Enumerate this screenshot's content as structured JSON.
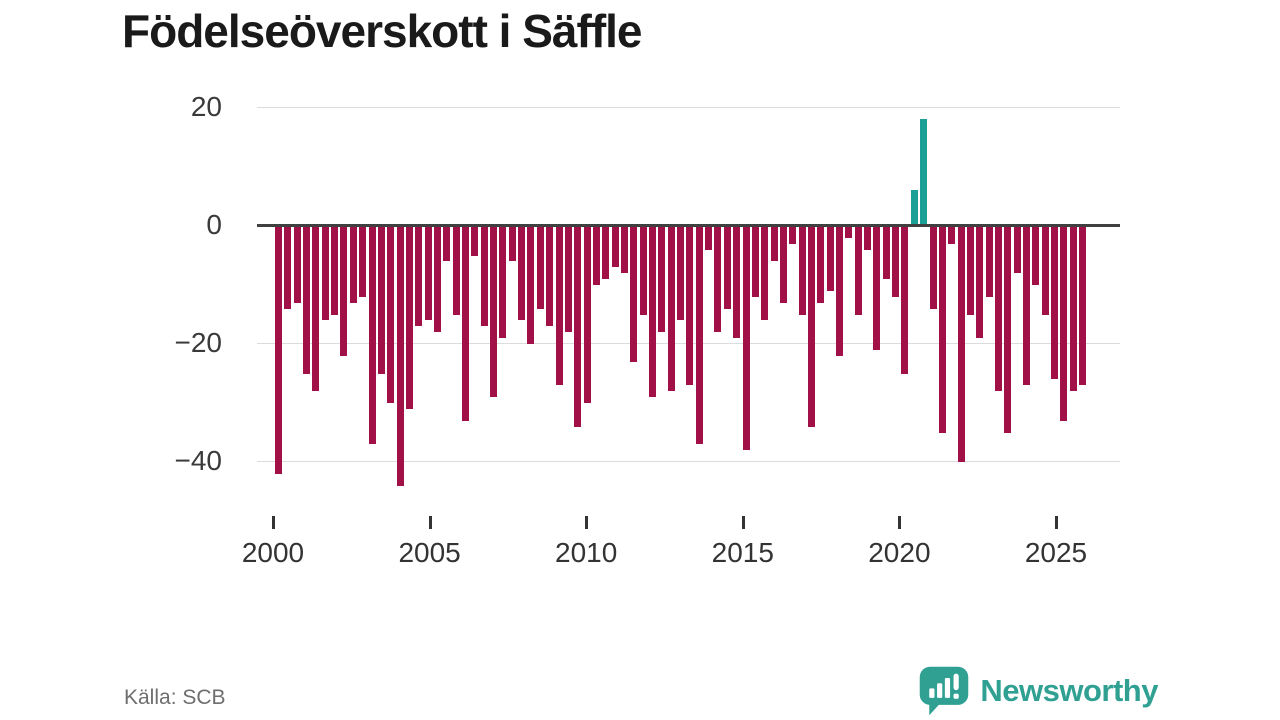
{
  "title": "Födelseöverskott i Säffle",
  "source": "Källa: SCB",
  "logo": {
    "text": "Newsworthy",
    "icon": "newsworthy-speech-bubble-chart-icon"
  },
  "colors": {
    "negative_bar": "#a21048",
    "positive_bar": "#1aa096",
    "zero_axis": "#404040",
    "gridline": "#dcdcdc",
    "axis_label": "#3a3a3a",
    "source_text": "#6e6e6e",
    "logo_teal": "#2fa092",
    "background": "#ffffff"
  },
  "chart_data": {
    "type": "bar",
    "title": "Födelseöverskott i Säffle",
    "xlabel": "",
    "ylabel": "",
    "grid": "horizontal",
    "legend": "none",
    "ylim": [
      -47,
      22
    ],
    "yticks": [
      {
        "value": 20,
        "label": "20"
      },
      {
        "value": 0,
        "label": "0"
      },
      {
        "value": -20,
        "label": "−20"
      },
      {
        "value": -40,
        "label": "−40"
      }
    ],
    "xticks": [
      {
        "year": 2000,
        "label": "2000"
      },
      {
        "year": 2005,
        "label": "2005"
      },
      {
        "year": 2010,
        "label": "2010"
      },
      {
        "year": 2015,
        "label": "2015"
      },
      {
        "year": 2020,
        "label": "2020"
      },
      {
        "year": 2025,
        "label": "2025"
      }
    ],
    "x_start_year": 2000,
    "x_end_year": 2025.8,
    "values": [
      -42,
      -14,
      -13,
      -25,
      -28,
      -16,
      -15,
      -22,
      -13,
      -12,
      -37,
      -25,
      -30,
      -44,
      -31,
      -17,
      -16,
      -18,
      -6,
      -15,
      -33,
      -5,
      -17,
      -29,
      -19,
      -6,
      -16,
      -20,
      -14,
      -17,
      -27,
      -18,
      -34,
      -30,
      -10,
      -9,
      -7,
      -8,
      -23,
      -15,
      -29,
      -18,
      -28,
      -16,
      -27,
      -37,
      -4,
      -18,
      -14,
      -19,
      -38,
      -12,
      -16,
      -6,
      -13,
      -3,
      -15,
      -34,
      -13,
      -11,
      -22,
      -2,
      -15,
      -4,
      -21,
      -9,
      -12,
      -25,
      6,
      18,
      -14,
      -35,
      -3,
      -40,
      -15,
      -19,
      -12,
      -28,
      -35,
      -8,
      -27,
      -10,
      -15,
      -26,
      -33,
      -28,
      -27
    ]
  }
}
